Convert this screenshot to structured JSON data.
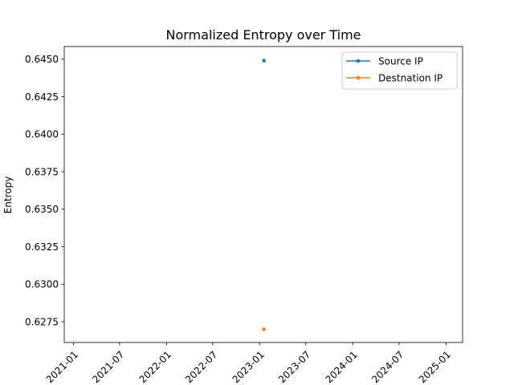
{
  "chart_data": {
    "type": "line",
    "title": "Normalized Entropy over Time",
    "xlabel": "",
    "ylabel": "Entropy",
    "x_ticks": [
      "2021-01",
      "2021-07",
      "2022-01",
      "2022-07",
      "2023-01",
      "2023-07",
      "2024-01",
      "2024-07",
      "2025-01"
    ],
    "y_ticks": [
      "0.6275",
      "0.6300",
      "0.6325",
      "0.6350",
      "0.6375",
      "0.6400",
      "0.6425",
      "0.6450"
    ],
    "xlim": [
      "2020-11-26",
      "2025-03-07"
    ],
    "ylim": [
      0.62612,
      0.64584
    ],
    "grid": false,
    "legend_position": "top-right",
    "series": [
      {
        "name": "Source IP",
        "color": "#1f77b4",
        "points": [
          {
            "x": "2023-01-18",
            "y": 0.6449
          }
        ]
      },
      {
        "name": "Destnation IP",
        "color": "#ff7f0e",
        "points": [
          {
            "x": "2023-01-18",
            "y": 0.627
          }
        ]
      }
    ]
  }
}
